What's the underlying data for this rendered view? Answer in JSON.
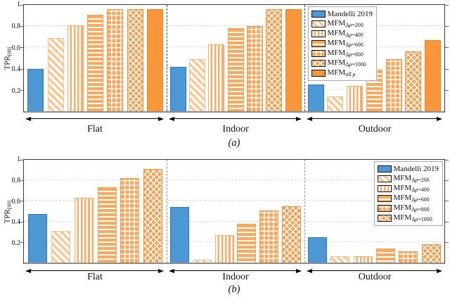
{
  "figure": {
    "description": "Two bar charts comparing TPR[60] of Mandelli 2019 vs MFM variants over Flat, Indoor and Outdoor scenes",
    "colors": {
      "blue": "#4d97d2",
      "orange": "#f8963c",
      "grid": "#dcdcdc",
      "separator": "#4a4a4a"
    }
  },
  "chart_data": [
    {
      "type": "bar",
      "title": "(a)",
      "ylabel": "TPR[60]",
      "ylabel_parts": {
        "base": "TPR",
        "sub": "[60]"
      },
      "ylim": [
        0,
        1
      ],
      "yticks": [
        0.2,
        0.4,
        0.6,
        0.8,
        1
      ],
      "ytick_labels": [
        "0.2",
        "0.4",
        "0.6",
        "0.8",
        "1"
      ],
      "grid": "horizontal-dashed",
      "legend_position": "upper-right-inset",
      "categories": [
        "Flat",
        "Indoor",
        "Outdoor"
      ],
      "series": [
        {
          "name": "Mandelli 2019",
          "legend": {
            "base": "Mandelli 2019",
            "sub": ""
          },
          "style_key": "blue",
          "pattern": "solid",
          "color": "#4d97d2",
          "values": [
            0.4,
            0.42,
            0.25
          ]
        },
        {
          "name": "MFM Δρ=200",
          "legend": {
            "base": "MFM",
            "sub": "Δρ=200"
          },
          "style_key": "d200",
          "pattern": "diagonal-hatch",
          "color": "#fbc795",
          "values": [
            0.69,
            0.49,
            0.14
          ]
        },
        {
          "name": "MFM Δρ=400",
          "legend": {
            "base": "MFM",
            "sub": "Δρ=400"
          },
          "style_key": "d400",
          "pattern": "vertical-hatch",
          "color": "#f8ad68",
          "values": [
            0.81,
            0.63,
            0.24
          ]
        },
        {
          "name": "MFM Δρ=600",
          "legend": {
            "base": "MFM",
            "sub": "Δρ=600"
          },
          "style_key": "d600",
          "pattern": "horizontal-hatch",
          "color": "#faa95f",
          "values": [
            0.91,
            0.78,
            0.39
          ]
        },
        {
          "name": "MFM Δρ=800",
          "legend": {
            "base": "MFM",
            "sub": "Δρ=800"
          },
          "style_key": "d800",
          "pattern": "grid-hatch",
          "color": "#faa65c",
          "values": [
            0.96,
            0.8,
            0.49
          ]
        },
        {
          "name": "MFM Δρ=1000",
          "legend": {
            "base": "MFM",
            "sub": "Δρ=1000"
          },
          "style_key": "d1000",
          "pattern": "cross-hatch",
          "color": "#f9a153",
          "values": [
            0.96,
            0.96,
            0.56
          ]
        },
        {
          "name": "MFM all ρ",
          "legend": {
            "base": "MFM",
            "sub": "all ρ"
          },
          "style_key": "all",
          "pattern": "solid",
          "color": "#f8963c",
          "values": [
            0.96,
            0.96,
            0.67
          ]
        }
      ]
    },
    {
      "type": "bar",
      "title": "(b)",
      "ylabel": "TPR[60]",
      "ylabel_parts": {
        "base": "TPR",
        "sub": "[60]"
      },
      "ylim": [
        0,
        1
      ],
      "yticks": [
        0.2,
        0.4,
        0.6,
        0.8,
        1
      ],
      "ytick_labels": [
        "0.2",
        "0.4",
        "0.6",
        "0.8",
        "1"
      ],
      "grid": "horizontal-dashed",
      "legend_position": "upper-right-inset",
      "categories": [
        "Flat",
        "Indoor",
        "Outdoor"
      ],
      "series": [
        {
          "name": "Mandelli 2019",
          "legend": {
            "base": "Mandelli 2019",
            "sub": ""
          },
          "style_key": "blue",
          "pattern": "solid",
          "color": "#4d97d2",
          "values": [
            0.47,
            0.54,
            0.25
          ]
        },
        {
          "name": "MFM Δρ=200",
          "legend": {
            "base": "MFM",
            "sub": "Δρ=200"
          },
          "style_key": "d200",
          "pattern": "diagonal-hatch",
          "color": "#fbc795",
          "values": [
            0.31,
            0.03,
            0.06
          ]
        },
        {
          "name": "MFM Δρ=400",
          "legend": {
            "base": "MFM",
            "sub": "Δρ=400"
          },
          "style_key": "d400",
          "pattern": "vertical-hatch",
          "color": "#f8ad68",
          "values": [
            0.63,
            0.27,
            0.06
          ]
        },
        {
          "name": "MFM Δρ=600",
          "legend": {
            "base": "MFM",
            "sub": "Δρ=600"
          },
          "style_key": "d600",
          "pattern": "horizontal-hatch",
          "color": "#faa95f",
          "values": [
            0.73,
            0.38,
            0.14
          ]
        },
        {
          "name": "MFM Δρ=800",
          "legend": {
            "base": "MFM",
            "sub": "Δρ=800"
          },
          "style_key": "d800",
          "pattern": "grid-hatch",
          "color": "#faa65c",
          "values": [
            0.82,
            0.51,
            0.11
          ]
        },
        {
          "name": "MFM Δρ=1000",
          "legend": {
            "base": "MFM",
            "sub": "Δρ=1000"
          },
          "style_key": "d1000",
          "pattern": "cross-hatch",
          "color": "#f9a153",
          "values": [
            0.91,
            0.55,
            0.18
          ]
        }
      ]
    }
  ]
}
